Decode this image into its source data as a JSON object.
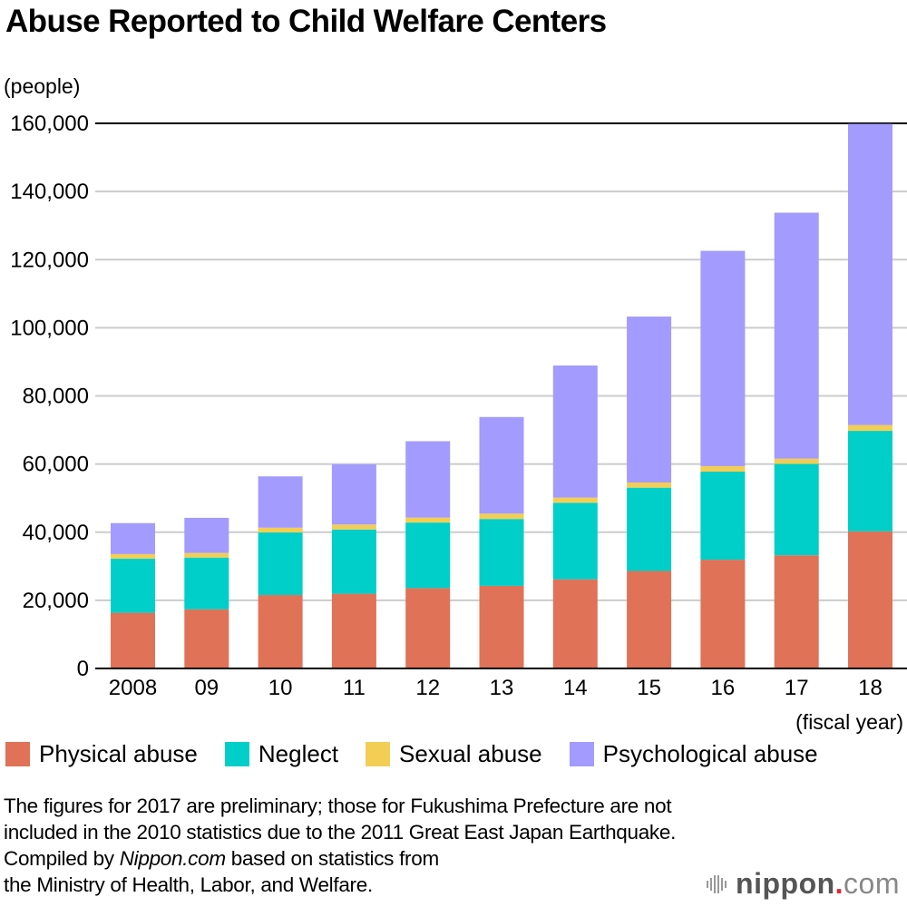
{
  "chart_data": {
    "type": "bar",
    "stacked": true,
    "title": "Abuse Reported to Child Welfare Centers",
    "ylabel": "(people)",
    "xlabel": "(fiscal year)",
    "ylim": [
      0,
      160000
    ],
    "yticks": [
      0,
      20000,
      40000,
      60000,
      80000,
      100000,
      120000,
      140000,
      160000
    ],
    "ytick_labels": [
      "0",
      "20,000",
      "40,000",
      "60,000",
      "80,000",
      "100,000",
      "120,000",
      "140,000",
      "160,000"
    ],
    "grid": true,
    "legend_position": "bottom",
    "categories": [
      "2008",
      "09",
      "10",
      "11",
      "12",
      "13",
      "14",
      "15",
      "16",
      "17",
      "18"
    ],
    "series": [
      {
        "name": "Physical abuse",
        "color": "#E07257",
        "values": [
          16343,
          17371,
          21559,
          21942,
          23579,
          24245,
          26181,
          28621,
          31925,
          33223,
          40256
        ]
      },
      {
        "name": "Neglect",
        "color": "#00CEC8",
        "values": [
          15905,
          15185,
          18352,
          18847,
          19250,
          19627,
          22455,
          24444,
          25842,
          26821,
          29479
        ]
      },
      {
        "name": "Sexual abuse",
        "color": "#F2CE55",
        "values": [
          1324,
          1350,
          1405,
          1460,
          1449,
          1582,
          1520,
          1521,
          1622,
          1537,
          1730
        ]
      },
      {
        "name": "Psychological abuse",
        "color": "#A39BFD",
        "values": [
          9092,
          10305,
          15068,
          17670,
          22423,
          28348,
          38775,
          48700,
          63186,
          72197,
          88391
        ]
      }
    ]
  },
  "notes": {
    "line1": "The figures for 2017 are preliminary; those for Fukushima Prefecture are not",
    "line2": "included in the 2010 statistics due to the 2011 Great East Japan Earthquake.",
    "line3_pre": "Compiled by ",
    "line3_em": "Nippon.com",
    "line3_post": " based on statistics from",
    "line4": "the Ministry of Health, Labor, and Welfare."
  },
  "logo": {
    "brand": "nippon",
    "dot": ".",
    "suffix": "com"
  }
}
